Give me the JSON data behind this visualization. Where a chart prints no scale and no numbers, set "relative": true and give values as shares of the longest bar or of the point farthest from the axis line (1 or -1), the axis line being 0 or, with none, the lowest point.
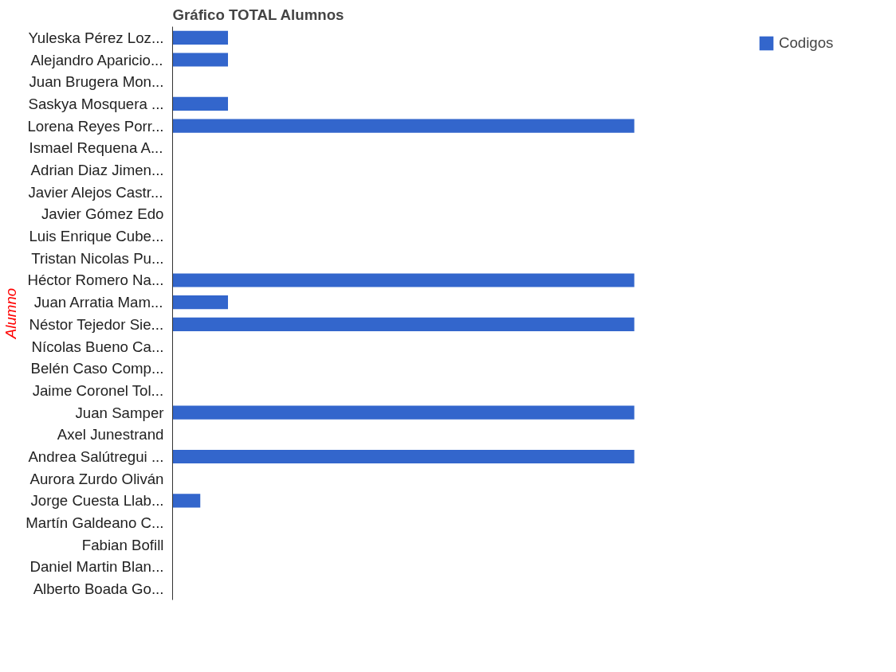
{
  "chart_data": {
    "type": "bar",
    "orientation": "horizontal",
    "relative": true,
    "title": "Gráfico TOTAL Alumnos",
    "ylabel": "Alumno",
    "categories": [
      "Yuleska Pérez Loz...",
      "Alejandro Aparicio...",
      "Juan Brugera Mon...",
      "Saskya Mosquera ...",
      "Lorena Reyes Porr...",
      "Ismael Requena A...",
      "Adrian Diaz Jimen...",
      "Javier Alejos Castr...",
      "Javier Gómez Edo",
      "Luis Enrique Cube...",
      "Tristan Nicolas Pu...",
      "Héctor Romero Na...",
      "Juan Arratia Mam...",
      "Néstor Tejedor Sie...",
      "Nícolas Bueno Ca...",
      "Belén Caso Comp...",
      "Jaime Coronel Tol...",
      "Juan Samper",
      "Axel Junestrand",
      "Andrea Salútregui ...",
      "Aurora Zurdo Oliván",
      "Jorge Cuesta Llab...",
      "Martín Galdeano C...",
      "Fabian Bofill",
      "Daniel Martin Blan...",
      "Alberto Boada Go..."
    ],
    "series": [
      {
        "name": "Codigos",
        "color": "#3366cc",
        "values": [
          0.12,
          0.12,
          0,
          0.12,
          1,
          0,
          0,
          0,
          0,
          0,
          0,
          1,
          0.12,
          1,
          0,
          0,
          0,
          1,
          0,
          1,
          0,
          0.06,
          0,
          0,
          0,
          0
        ]
      }
    ],
    "legend": "top right"
  }
}
